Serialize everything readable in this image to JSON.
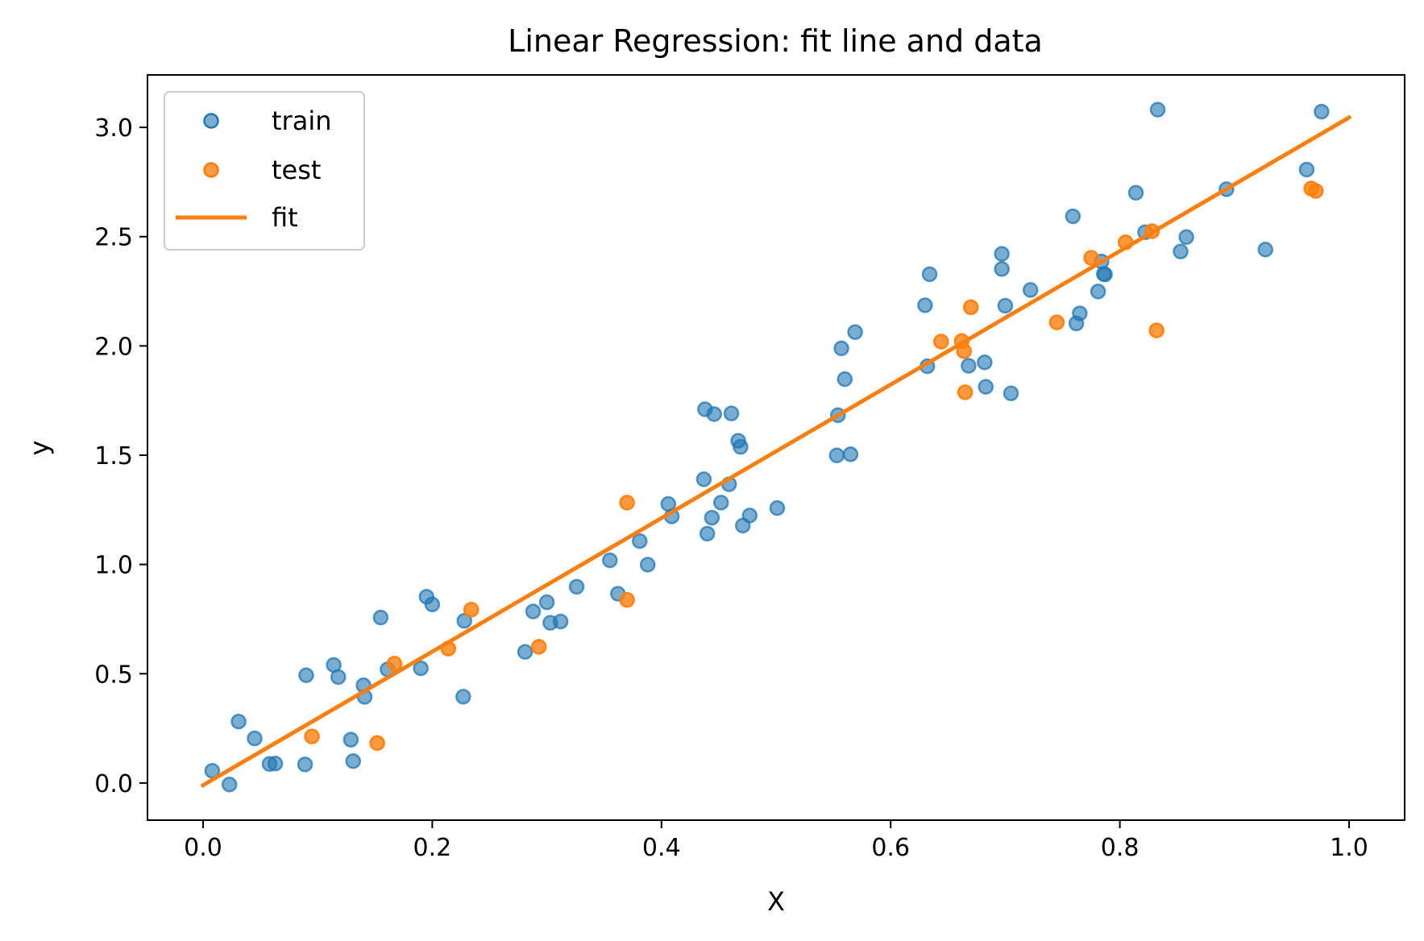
{
  "chart_data": {
    "type": "scatter",
    "title": "Linear Regression: fit line and data",
    "xlabel": "X",
    "ylabel": "y",
    "xlim": [
      -0.0485,
      1.0485
    ],
    "ylim": [
      -0.17,
      3.24
    ],
    "xticks": [
      0.0,
      0.2,
      0.4,
      0.6,
      0.8,
      1.0
    ],
    "xtick_labels": [
      "0.0",
      "0.2",
      "0.4",
      "0.6",
      "0.8",
      "1.0"
    ],
    "yticks": [
      0.0,
      0.5,
      1.0,
      1.5,
      2.0,
      2.5,
      3.0
    ],
    "ytick_labels": [
      "0.0",
      "0.5",
      "1.0",
      "1.5",
      "2.0",
      "2.5",
      "3.0"
    ],
    "grid": false,
    "legend": {
      "placement": "top-left",
      "entries": [
        "train",
        "test",
        "fit"
      ]
    },
    "colors": {
      "train": "#1f77b4",
      "test": "#ff7f0e",
      "fit": "#ff7f0e"
    },
    "series": [
      {
        "name": "train",
        "kind": "scatter",
        "points": [
          [
            0.008,
            0.056
          ],
          [
            0.023,
            -0.007
          ],
          [
            0.031,
            0.281
          ],
          [
            0.045,
            0.204
          ],
          [
            0.058,
            0.087
          ],
          [
            0.063,
            0.089
          ],
          [
            0.089,
            0.085
          ],
          [
            0.09,
            0.493
          ],
          [
            0.114,
            0.54
          ],
          [
            0.118,
            0.485
          ],
          [
            0.129,
            0.198
          ],
          [
            0.131,
            0.1
          ],
          [
            0.14,
            0.447
          ],
          [
            0.141,
            0.394
          ],
          [
            0.155,
            0.757
          ],
          [
            0.161,
            0.52
          ],
          [
            0.19,
            0.525
          ],
          [
            0.195,
            0.852
          ],
          [
            0.2,
            0.817
          ],
          [
            0.227,
            0.395
          ],
          [
            0.228,
            0.742
          ],
          [
            0.281,
            0.6
          ],
          [
            0.288,
            0.785
          ],
          [
            0.3,
            0.827
          ],
          [
            0.303,
            0.733
          ],
          [
            0.312,
            0.739
          ],
          [
            0.326,
            0.898
          ],
          [
            0.355,
            1.019
          ],
          [
            0.362,
            0.866
          ],
          [
            0.381,
            1.107
          ],
          [
            0.388,
            0.999
          ],
          [
            0.406,
            1.277
          ],
          [
            0.409,
            1.22
          ],
          [
            0.437,
            1.39
          ],
          [
            0.438,
            1.71
          ],
          [
            0.44,
            1.141
          ],
          [
            0.444,
            1.214
          ],
          [
            0.446,
            1.688
          ],
          [
            0.452,
            1.283
          ],
          [
            0.459,
            1.367
          ],
          [
            0.461,
            1.691
          ],
          [
            0.467,
            1.566
          ],
          [
            0.469,
            1.538
          ],
          [
            0.471,
            1.178
          ],
          [
            0.477,
            1.224
          ],
          [
            0.501,
            1.258
          ],
          [
            0.553,
            1.499
          ],
          [
            0.554,
            1.683
          ],
          [
            0.557,
            1.989
          ],
          [
            0.56,
            1.848
          ],
          [
            0.565,
            1.504
          ],
          [
            0.569,
            2.063
          ],
          [
            0.63,
            2.186
          ],
          [
            0.632,
            1.907
          ],
          [
            0.634,
            2.328
          ],
          [
            0.668,
            1.909
          ],
          [
            0.682,
            1.925
          ],
          [
            0.683,
            1.813
          ],
          [
            0.697,
            2.421
          ],
          [
            0.697,
            2.352
          ],
          [
            0.7,
            2.184
          ],
          [
            0.705,
            1.783
          ],
          [
            0.722,
            2.256
          ],
          [
            0.759,
            2.593
          ],
          [
            0.762,
            2.103
          ],
          [
            0.765,
            2.149
          ],
          [
            0.781,
            2.249
          ],
          [
            0.784,
            2.386
          ],
          [
            0.786,
            2.329
          ],
          [
            0.787,
            2.327
          ],
          [
            0.814,
            2.701
          ],
          [
            0.822,
            2.52
          ],
          [
            0.833,
            3.081
          ],
          [
            0.853,
            2.432
          ],
          [
            0.858,
            2.498
          ],
          [
            0.893,
            2.717
          ],
          [
            0.927,
            2.441
          ],
          [
            0.963,
            2.807
          ],
          [
            0.976,
            3.072
          ]
        ]
      },
      {
        "name": "test",
        "kind": "scatter",
        "points": [
          [
            0.095,
            0.213
          ],
          [
            0.152,
            0.183
          ],
          [
            0.167,
            0.546
          ],
          [
            0.214,
            0.615
          ],
          [
            0.234,
            0.793
          ],
          [
            0.293,
            0.623
          ],
          [
            0.37,
            1.283
          ],
          [
            0.37,
            0.838
          ],
          [
            0.644,
            2.02
          ],
          [
            0.662,
            2.022
          ],
          [
            0.664,
            1.976
          ],
          [
            0.665,
            1.788
          ],
          [
            0.67,
            2.177
          ],
          [
            0.745,
            2.108
          ],
          [
            0.775,
            2.403
          ],
          [
            0.805,
            2.474
          ],
          [
            0.828,
            2.525
          ],
          [
            0.832,
            2.071
          ],
          [
            0.967,
            2.72
          ],
          [
            0.971,
            2.709
          ]
        ]
      },
      {
        "name": "fit",
        "kind": "line",
        "points": [
          [
            0.0,
            -0.01
          ],
          [
            1.0,
            3.045
          ]
        ]
      }
    ]
  }
}
